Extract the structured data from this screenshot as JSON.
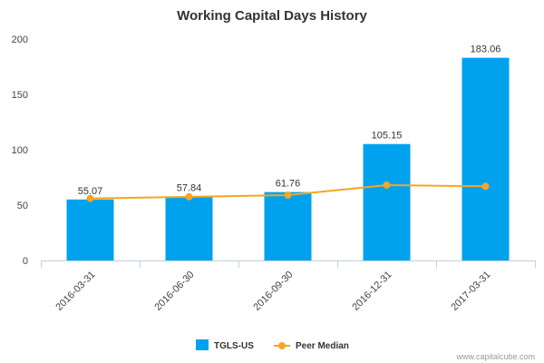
{
  "chart_data": {
    "type": "bar",
    "title": "Working Capital Days History",
    "xlabel": "",
    "ylabel": "",
    "categories": [
      "2016-03-31",
      "2016-06-30",
      "2016-09-30",
      "2016-12-31",
      "2017-03-31"
    ],
    "series": [
      {
        "name": "TGLS-US",
        "type": "bar",
        "color": "#00a2ed",
        "values": [
          55.07,
          57.84,
          61.76,
          105.15,
          183.06
        ],
        "data_labels": [
          "55.07",
          "57.84",
          "61.76",
          "105.15",
          "183.06"
        ]
      },
      {
        "name": "Peer Median",
        "type": "line",
        "color": "#f5a623",
        "values": [
          56,
          57.5,
          59,
          68,
          67
        ]
      }
    ],
    "ylim": [
      0,
      200
    ],
    "yticks": [
      0,
      50,
      100,
      150,
      200
    ],
    "grid": false,
    "legend_position": "bottom-center"
  },
  "credit": "www.capitalcube.com"
}
